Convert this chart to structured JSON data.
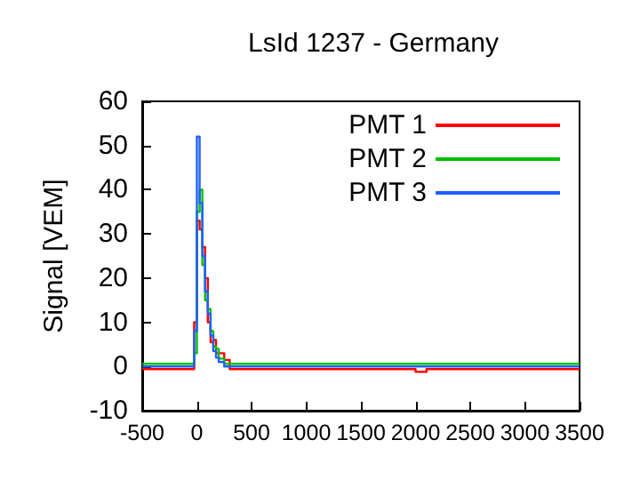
{
  "chart_data": {
    "type": "step",
    "title": "LsId 1237 - Germany",
    "ylabel": "Signal [VEM]",
    "xlim": [
      -500,
      3500
    ],
    "xticks": [
      -500,
      0,
      500,
      1000,
      1500,
      2000,
      2500,
      3000,
      3500
    ],
    "ylim": [
      -10,
      60
    ],
    "yticks": [
      -10,
      0,
      10,
      20,
      30,
      40,
      50,
      60
    ],
    "grid": false,
    "legend": "top right",
    "marker": "none",
    "line_style": "solid",
    "series": [
      {
        "name": "PMT 1",
        "color": "#ff0000",
        "x": [
          -500,
          -250,
          -100,
          -25,
          0,
          25,
          50,
          75,
          100,
          125,
          150,
          175,
          200,
          250,
          300,
          400,
          600,
          900,
          1200,
          1500,
          1800,
          2000,
          2100,
          2400,
          2700,
          3000,
          3300,
          3500
        ],
        "values": [
          -0.6,
          -0.6,
          -0.6,
          10,
          33,
          31,
          27,
          20,
          10,
          5.5,
          6,
          3,
          3,
          1.5,
          -0.6,
          -0.6,
          -0.6,
          -0.6,
          -0.6,
          -0.6,
          -0.6,
          -1.2,
          -0.6,
          -0.6,
          -0.6,
          -0.6,
          -0.6,
          -0.6
        ]
      },
      {
        "name": "PMT 2",
        "color": "#00c000",
        "x": [
          -500,
          -250,
          -100,
          -25,
          0,
          25,
          50,
          75,
          100,
          125,
          150,
          175,
          200,
          250,
          300,
          400,
          600,
          900,
          1200,
          1500,
          1800,
          2000,
          2100,
          2400,
          2700,
          3000,
          3300,
          3500
        ],
        "values": [
          0.6,
          0.6,
          0.6,
          3,
          35,
          40,
          23,
          15,
          13,
          8,
          4.5,
          4,
          1.8,
          0.6,
          0.6,
          0.6,
          0.6,
          0.6,
          0.6,
          0.6,
          0.6,
          0.6,
          0.6,
          0.6,
          0.6,
          0.6,
          0.6,
          0.6
        ]
      },
      {
        "name": "PMT 3",
        "color": "#2060ff",
        "x": [
          -500,
          -250,
          -100,
          -25,
          0,
          25,
          50,
          75,
          100,
          125,
          150,
          175,
          200,
          250,
          300,
          400,
          600,
          900,
          1200,
          1500,
          1800,
          2000,
          2100,
          2400,
          2700,
          3000,
          3300,
          3500
        ],
        "values": [
          0,
          0,
          0,
          8,
          52,
          37,
          25,
          17,
          12,
          7,
          3.5,
          2,
          1,
          0,
          0,
          0,
          0,
          0,
          0,
          0,
          0,
          0,
          0,
          0,
          0,
          0,
          0,
          0
        ]
      }
    ]
  }
}
